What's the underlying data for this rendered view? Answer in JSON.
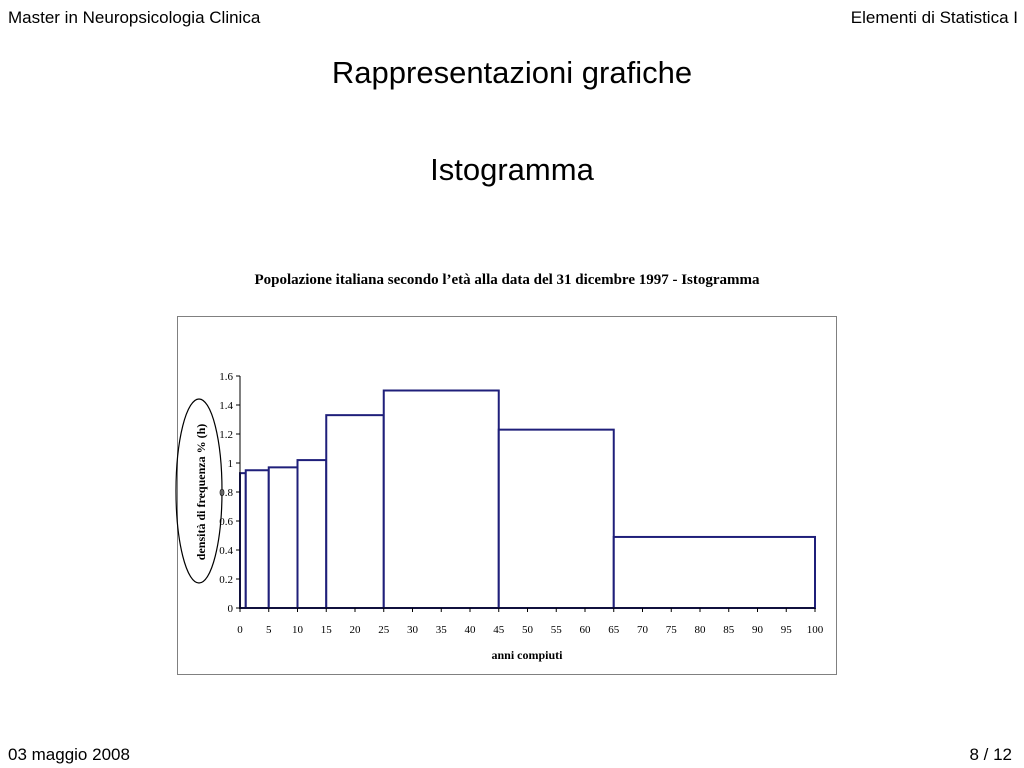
{
  "header": {
    "left": "Master in Neuropsicologia Clinica",
    "right": "Elementi di Statistica I"
  },
  "slide": {
    "title": "Rappresentazioni grafiche",
    "subtitle": "Istogramma"
  },
  "footer": {
    "date": "03 maggio 2008",
    "page": "8 / 12"
  },
  "colors": {
    "bar_stroke": "#1f1f7a",
    "frame": "#808080",
    "annotation": "#000000"
  },
  "chart_data": {
    "type": "bar",
    "title": "Popolazione italiana secondo l’età alla data del 31 dicembre 1997 - Istogramma",
    "xlabel": "anni compiuti",
    "ylabel": "densità di frequenza % (h)",
    "xlim": [
      0,
      100
    ],
    "ylim": [
      0,
      1.6
    ],
    "x_ticks": [
      0,
      5,
      10,
      15,
      20,
      25,
      30,
      35,
      40,
      45,
      50,
      55,
      60,
      65,
      70,
      75,
      80,
      85,
      90,
      95,
      100
    ],
    "x_tick_labels": [
      "0",
      "5",
      "10",
      "15",
      "20",
      "25",
      "30",
      "35",
      "40",
      "45",
      "50",
      "55",
      "60",
      "65",
      "70",
      "75",
      "80",
      "85",
      "90",
      "95",
      "100"
    ],
    "y_ticks": [
      0,
      0.2,
      0.4,
      0.6,
      0.8,
      1,
      1.2,
      1.4,
      1.6
    ],
    "y_tick_labels": [
      "0",
      "0.2",
      "0.4",
      "0.6",
      "0.8",
      "1",
      "1.2",
      "1.4",
      "1.6"
    ],
    "bins": [
      {
        "from": 0,
        "to": 1,
        "value": 0.93
      },
      {
        "from": 1,
        "to": 5,
        "value": 0.95
      },
      {
        "from": 5,
        "to": 10,
        "value": 0.97
      },
      {
        "from": 10,
        "to": 15,
        "value": 1.02
      },
      {
        "from": 15,
        "to": 25,
        "value": 1.33
      },
      {
        "from": 25,
        "to": 45,
        "value": 1.5
      },
      {
        "from": 45,
        "to": 65,
        "value": 1.23
      },
      {
        "from": 65,
        "to": 100,
        "value": 0.49
      }
    ],
    "annotation": "ellipse around y-axis label",
    "grid": false,
    "legend": "none"
  }
}
